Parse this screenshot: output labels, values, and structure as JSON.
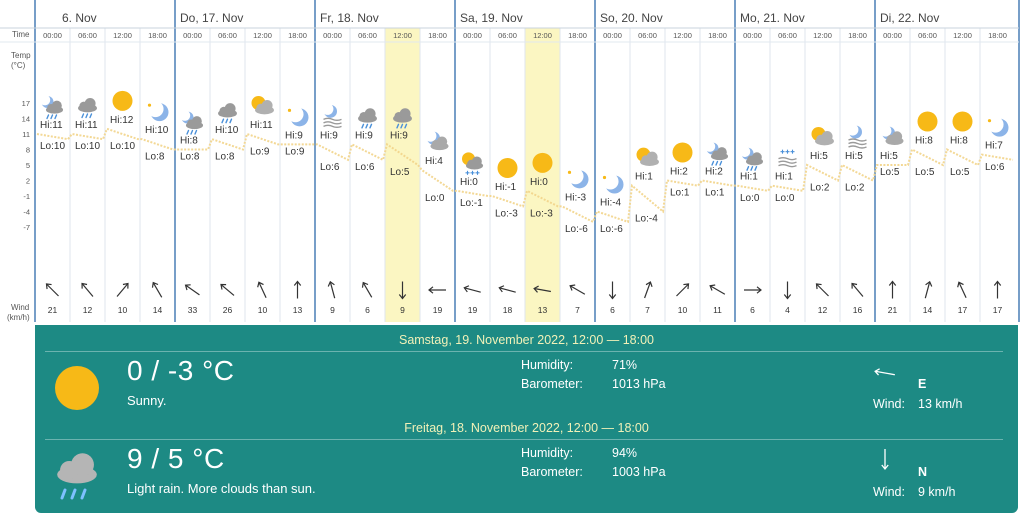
{
  "axis": {
    "time_label": "Time",
    "temp_label": "Temp",
    "temp_unit": "(°C)",
    "wind_label": "Wind",
    "wind_unit": "(km/h)",
    "temp_ticks": [
      "17",
      "14",
      "11",
      "8",
      "5",
      "2",
      "-1",
      "-4",
      "-7"
    ]
  },
  "days": [
    {
      "label": "6. Nov"
    },
    {
      "label": "Do, 17. Nov"
    },
    {
      "label": "Fr, 18. Nov"
    },
    {
      "label": "Sa, 19. Nov"
    },
    {
      "label": "So, 20. Nov"
    },
    {
      "label": "Mo, 21. Nov"
    },
    {
      "label": "Di, 22. Nov"
    }
  ],
  "slots": [
    {
      "time": "00:00",
      "icon": "moon-cloud-rain-icon",
      "hi": "Hi:11",
      "lo": "Lo:10",
      "hi_v": 11,
      "lo_v": 10,
      "wind": "21",
      "wind_angle": 315,
      "highlight": false
    },
    {
      "time": "06:00",
      "icon": "cloud-rain-icon",
      "hi": "Hi:11",
      "lo": "Lo:10",
      "hi_v": 11,
      "lo_v": 10,
      "wind": "12",
      "wind_angle": 320,
      "highlight": false
    },
    {
      "time": "12:00",
      "icon": "sun-icon",
      "hi": "Hi:12",
      "lo": "Lo:10",
      "hi_v": 12,
      "lo_v": 10,
      "wind": "10",
      "wind_angle": 40,
      "highlight": false
    },
    {
      "time": "18:00",
      "icon": "moon-star-icon",
      "hi": "Hi:10",
      "lo": "Lo:8",
      "hi_v": 10,
      "lo_v": 8,
      "wind": "14",
      "wind_angle": 330,
      "highlight": false
    },
    {
      "time": "00:00",
      "icon": "moon-cloud-rain-icon",
      "hi": "Hi:8",
      "lo": "Lo:8",
      "hi_v": 8,
      "lo_v": 8,
      "wind": "33",
      "wind_angle": 305,
      "highlight": false
    },
    {
      "time": "06:00",
      "icon": "cloud-rain-icon",
      "hi": "Hi:10",
      "lo": "Lo:8",
      "hi_v": 10,
      "lo_v": 8,
      "wind": "26",
      "wind_angle": 310,
      "highlight": false
    },
    {
      "time": "12:00",
      "icon": "sun-cloud-icon",
      "hi": "Hi:11",
      "lo": "Lo:9",
      "hi_v": 11,
      "lo_v": 9,
      "wind": "10",
      "wind_angle": 335,
      "highlight": false
    },
    {
      "time": "18:00",
      "icon": "moon-star-icon",
      "hi": "Hi:9",
      "lo": "Lo:9",
      "hi_v": 9,
      "lo_v": 9,
      "wind": "13",
      "wind_angle": 0,
      "highlight": false
    },
    {
      "time": "00:00",
      "icon": "moon-fog-icon",
      "hi": "Hi:9",
      "lo": "Lo:6",
      "hi_v": 9,
      "lo_v": 6,
      "wind": "9",
      "wind_angle": 345,
      "highlight": false
    },
    {
      "time": "06:00",
      "icon": "cloud-rain-icon",
      "hi": "Hi:9",
      "lo": "Lo:6",
      "hi_v": 9,
      "lo_v": 6,
      "wind": "6",
      "wind_angle": 330,
      "highlight": false
    },
    {
      "time": "12:00",
      "icon": "cloud-rain-icon",
      "hi": "Hi:9",
      "lo": "Lo:5",
      "hi_v": 9,
      "lo_v": 5,
      "wind": "9",
      "wind_angle": 180,
      "highlight": true
    },
    {
      "time": "18:00",
      "icon": "moon-cloud-icon",
      "hi": "Hi:4",
      "lo": "Lo:0",
      "hi_v": 4,
      "lo_v": 0,
      "wind": "19",
      "wind_angle": 270,
      "highlight": false
    },
    {
      "time": "00:00",
      "icon": "sun-cloud-snow-icon",
      "hi": "Hi:0",
      "lo": "Lo:-1",
      "hi_v": 0,
      "lo_v": -1,
      "wind": "19",
      "wind_angle": 285,
      "highlight": false
    },
    {
      "time": "06:00",
      "icon": "sun-icon",
      "hi": "Hi:-1",
      "lo": "Lo:-3",
      "hi_v": -1,
      "lo_v": -3,
      "wind": "18",
      "wind_angle": 285,
      "highlight": false
    },
    {
      "time": "12:00",
      "icon": "sun-icon",
      "hi": "Hi:0",
      "lo": "Lo:-3",
      "hi_v": 0,
      "lo_v": -3,
      "wind": "13",
      "wind_angle": 280,
      "highlight": true
    },
    {
      "time": "18:00",
      "icon": "moon-star-icon",
      "hi": "Hi:-3",
      "lo": "Lo:-6",
      "hi_v": -3,
      "lo_v": -6,
      "wind": "7",
      "wind_angle": 300,
      "highlight": false
    },
    {
      "time": "00:00",
      "icon": "moon-star-icon",
      "hi": "Hi:-4",
      "lo": "Lo:-6",
      "hi_v": -4,
      "lo_v": -6,
      "wind": "6",
      "wind_angle": 180,
      "highlight": false
    },
    {
      "time": "06:00",
      "icon": "sun-cloud-icon",
      "hi": "Hi:1",
      "lo": "Lo:-4",
      "hi_v": 1,
      "lo_v": -4,
      "wind": "7",
      "wind_angle": 20,
      "highlight": false
    },
    {
      "time": "12:00",
      "icon": "sun-icon",
      "hi": "Hi:2",
      "lo": "Lo:1",
      "hi_v": 2,
      "lo_v": 1,
      "wind": "10",
      "wind_angle": 45,
      "highlight": false
    },
    {
      "time": "18:00",
      "icon": "moon-cloud-rain-icon",
      "hi": "Hi:2",
      "lo": "Lo:1",
      "hi_v": 2,
      "lo_v": 1,
      "wind": "11",
      "wind_angle": 300,
      "highlight": false
    },
    {
      "time": "00:00",
      "icon": "moon-cloud-rain-icon",
      "hi": "Hi:1",
      "lo": "Lo:0",
      "hi_v": 1,
      "lo_v": 0,
      "wind": "6",
      "wind_angle": 90,
      "highlight": false
    },
    {
      "time": "06:00",
      "icon": "snow-fog-icon",
      "hi": "Hi:1",
      "lo": "Lo:0",
      "hi_v": 1,
      "lo_v": 0,
      "wind": "4",
      "wind_angle": 180,
      "highlight": false
    },
    {
      "time": "12:00",
      "icon": "sun-cloud-icon",
      "hi": "Hi:5",
      "lo": "Lo:2",
      "hi_v": 5,
      "lo_v": 2,
      "wind": "12",
      "wind_angle": 315,
      "highlight": false
    },
    {
      "time": "18:00",
      "icon": "moon-fog-icon",
      "hi": "Hi:5",
      "lo": "Lo:2",
      "hi_v": 5,
      "lo_v": 2,
      "wind": "16",
      "wind_angle": 320,
      "highlight": false
    },
    {
      "time": "00:00",
      "icon": "moon-cloud-icon",
      "hi": "Hi:5",
      "lo": "Lo:5",
      "hi_v": 5,
      "lo_v": 5,
      "wind": "21",
      "wind_angle": 0,
      "highlight": false
    },
    {
      "time": "06:00",
      "icon": "sun-icon",
      "hi": "Hi:8",
      "lo": "Lo:5",
      "hi_v": 8,
      "lo_v": 5,
      "wind": "14",
      "wind_angle": 15,
      "highlight": false
    },
    {
      "time": "12:00",
      "icon": "sun-icon",
      "hi": "Hi:8",
      "lo": "Lo:5",
      "hi_v": 8,
      "lo_v": 5,
      "wind": "17",
      "wind_angle": 335,
      "highlight": false
    },
    {
      "time": "18:00",
      "icon": "moon-star-icon",
      "hi": "Hi:7",
      "lo": "Lo:6",
      "hi_v": 7,
      "lo_v": 6,
      "wind": "17",
      "wind_angle": 0,
      "highlight": false
    }
  ],
  "periods": [
    {
      "header": "Samstag, 19. November 2022, 12:00 — 18:00",
      "icon": "sun-icon",
      "temp": "0 / -3 °C",
      "desc": "Sunny.",
      "humidity_label": "Humidity:",
      "humidity": "71%",
      "barometer_label": "Barometer:",
      "barometer": "1013 hPa",
      "wind_arrow": "arrow-left-icon",
      "wind_angle": 280,
      "wind_dir": "E",
      "wind_label": "Wind:",
      "wind_speed": "13 km/h"
    },
    {
      "header": "Freitag, 18. November 2022, 12:00 — 18:00",
      "icon": "cloud-rain-icon",
      "temp": "9 / 5 °C",
      "desc": "Light rain. More clouds than sun.",
      "humidity_label": "Humidity:",
      "humidity": "94%",
      "barometer_label": "Barometer:",
      "barometer": "1003 hPa",
      "wind_arrow": "arrow-down-icon",
      "wind_angle": 180,
      "wind_dir": "N",
      "wind_label": "Wind:",
      "wind_speed": "9 km/h"
    }
  ],
  "colors": {
    "grid_line": "#4a7fb5",
    "sub_line": "#dfe6ee",
    "highlight": "#fbf6c2",
    "temp_curve": "#f2d48a",
    "sun": "#f7b917",
    "moon": "#8cb4e8",
    "cloud": "#9a9a9a",
    "rain": "#4a90d9",
    "panel": "#1d8a84",
    "panel_header": "#f1f1b8"
  }
}
